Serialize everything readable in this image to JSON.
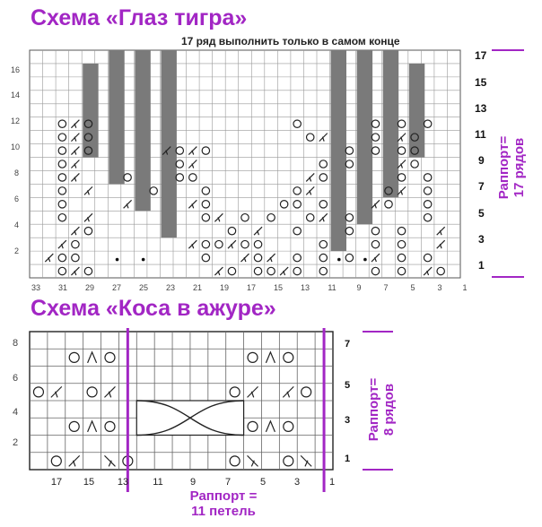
{
  "titles": {
    "tiger_eye": "Схема «Глаз тигра»",
    "braid": "Схема «Коса в ажуре»"
  },
  "note": "17 ряд выполнить только в самом конце",
  "chart1": {
    "left_row_numbers": [
      "16",
      "14",
      "12",
      "10",
      "8",
      "6",
      "4",
      "2"
    ],
    "right_row_numbers": [
      "17",
      "15",
      "13",
      "11",
      "9",
      "7",
      "5",
      "3",
      "1"
    ],
    "column_numbers": [
      "33",
      "31",
      "29",
      "27",
      "25",
      "23",
      "21",
      "19",
      "17",
      "15",
      "13",
      "11",
      "9",
      "7",
      "5",
      "3",
      "1"
    ],
    "repeat_label_line1": "Раппорт=",
    "repeat_label_line2": "17 рядов"
  },
  "chart2": {
    "left_row_numbers": [
      "8",
      "6",
      "4",
      "2"
    ],
    "right_row_numbers": [
      "7",
      "5",
      "3",
      "1"
    ],
    "column_numbers": [
      "17",
      "15",
      "13",
      "11",
      "9",
      "7",
      "5",
      "3",
      "1"
    ],
    "repeat_vertical_line1": "Раппорт=",
    "repeat_vertical_line2": "8 рядов",
    "repeat_horizontal_line1": "Раппорт =",
    "repeat_horizontal_line2": "11 петель"
  },
  "colors": {
    "accent": "#a226c4",
    "grid": "#555555",
    "block": "#7a7a7a"
  }
}
